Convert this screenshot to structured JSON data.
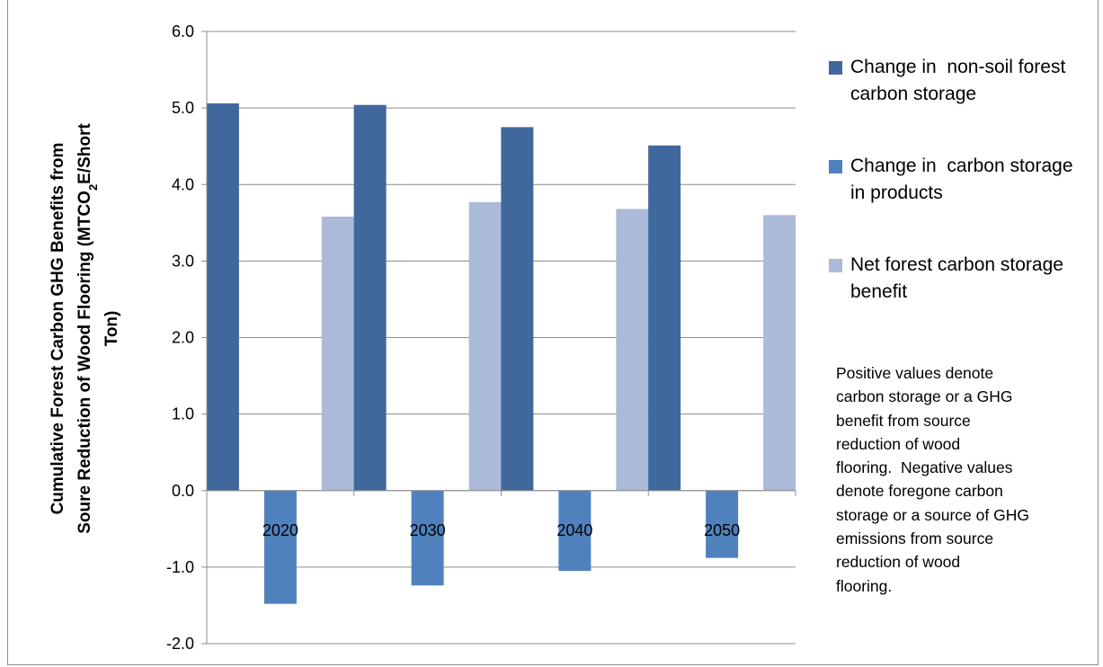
{
  "chart_data": {
    "type": "bar",
    "title": "",
    "xlabel": "",
    "ylabel": "Cumulative Forest Carbon GHG Benefits from Soure Reduction of Wood Flooring (MTCO2E/Short Ton)",
    "ylabel_lines": [
      {
        "parts": [
          {
            "t": "Cumulative Forest Carbon GHG Benefits from",
            "sub": false
          }
        ]
      },
      {
        "parts": [
          {
            "t": "Soure Reduction of Wood Flooring (MTCO",
            "sub": false
          },
          {
            "t": "2",
            "sub": true
          },
          {
            "t": "E/Short",
            "sub": false
          }
        ]
      },
      {
        "parts": [
          {
            "t": "Ton)",
            "sub": false
          }
        ]
      }
    ],
    "categories": [
      "2020",
      "2030",
      "2040",
      "2050"
    ],
    "ylim": [
      -2.0,
      6.0
    ],
    "ytick_labels": [
      "-2.0",
      "-1.0",
      "0.0",
      "1.0",
      "2.0",
      "3.0",
      "4.0",
      "5.0",
      "6.0"
    ],
    "grid": true,
    "legend_position": "right",
    "series": [
      {
        "name": "Change in non-soil forest carbon storage",
        "legend_lines": [
          "Change in  non-soil forest",
          "carbon storage"
        ],
        "color": "#41689c",
        "values": [
          5.06,
          5.04,
          4.75,
          4.51
        ]
      },
      {
        "name": "Change in carbon storage in products",
        "legend_lines": [
          "Change in  carbon storage",
          "in products"
        ],
        "color": "#4f81bd",
        "values": [
          -1.48,
          -1.24,
          -1.05,
          -0.88
        ]
      },
      {
        "name": "Net forest carbon storage benefit",
        "legend_lines": [
          "Net forest carbon storage",
          "benefit"
        ],
        "color": "#abbad8",
        "values": [
          3.58,
          3.77,
          3.68,
          3.6
        ]
      }
    ],
    "annotation_lines": [
      "Positive values denote",
      "carbon storage or a GHG",
      "benefit from source",
      "reduction of wood",
      "flooring.  Negative values",
      "denote foregone carbon",
      "storage or a source of GHG",
      "emissions from source",
      "reduction of wood",
      "flooring."
    ]
  }
}
